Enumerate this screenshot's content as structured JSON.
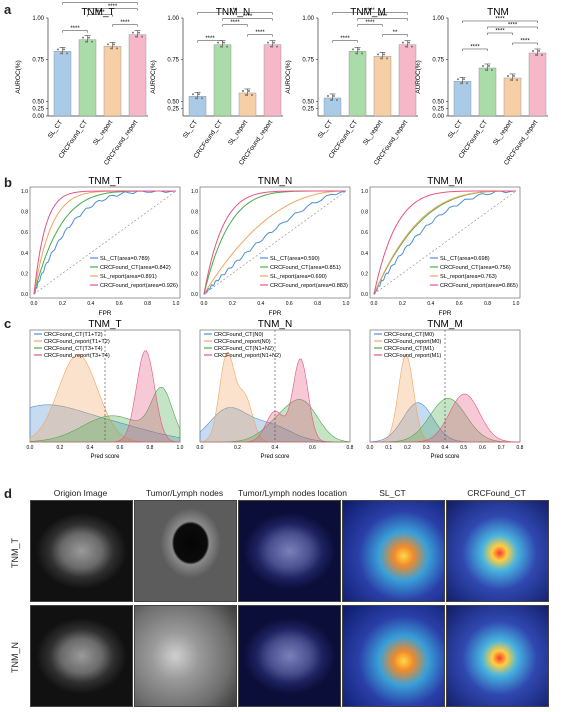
{
  "panels": {
    "a": "a",
    "b": "b",
    "c": "c",
    "d": "d"
  },
  "colors": {
    "sl_ct": "#4d8fd1",
    "crc_ct": "#4caa4c",
    "sl_report": "#f4a460",
    "crc_report": "#e75480",
    "bar_sl_ct": "#a9cbe8",
    "bar_crc_ct": "#a9dca9",
    "bar_sl_report": "#f7cfa7",
    "bar_crc_report": "#f6b8c8"
  },
  "bar_categories": [
    "SL_CT",
    "CRCFound_CT",
    "SL_report",
    "CRCFound_report"
  ],
  "bar_ylabel": "AUROC(%)",
  "roc_xlabel": "FPR",
  "density_xlabel": "Pred score",
  "section_d": {
    "columns": [
      "Origion Image",
      "Tumor/Lymph nodes",
      "Tumor/Lymph nodes location",
      "SL_CT",
      "CRCFound_CT"
    ],
    "rows": [
      "TNM_T",
      "TNM_N"
    ]
  },
  "chart_data": [
    {
      "type": "bar",
      "title": "TNM_T",
      "categories": [
        "SL_CT",
        "CRCFound_CT",
        "SL_report",
        "CRCFound_report"
      ],
      "values": [
        0.8,
        0.87,
        0.83,
        0.9
      ],
      "ylim": [
        0.0,
        1.0
      ],
      "yticks": [
        "0.00",
        "0.25",
        "0.50",
        "0.75",
        "1.00"
      ],
      "sig": [
        "****",
        "****",
        "****",
        "****",
        "**"
      ]
    },
    {
      "type": "bar",
      "title": "TNM_N",
      "categories": [
        "SL_CT",
        "CRCFound_CT",
        "SL_report",
        "CRCFound_report"
      ],
      "values": [
        0.53,
        0.84,
        0.55,
        0.84
      ],
      "ylim": [
        0.0,
        1.0
      ],
      "yticks": [
        "0.25",
        "0.50",
        "0.75",
        "1.00"
      ],
      "sig": [
        "****",
        "****",
        "****",
        "****",
        "**"
      ]
    },
    {
      "type": "bar",
      "title": "TNM_M",
      "categories": [
        "SL_CT",
        "CRCFound_CT",
        "SL_report",
        "CRCFound_report"
      ],
      "values": [
        0.52,
        0.8,
        0.77,
        0.84
      ],
      "ylim": [
        0.0,
        1.0
      ],
      "yticks": [
        "0.25",
        "0.50",
        "0.75",
        "1.00"
      ],
      "sig": [
        "****",
        "**",
        "****",
        "****",
        "****"
      ]
    },
    {
      "type": "bar",
      "title": "TNM",
      "categories": [
        "SL_CT",
        "CRCFound_CT",
        "SL_report",
        "CRCFound_report"
      ],
      "values": [
        0.62,
        0.7,
        0.64,
        0.79
      ],
      "ylim": [
        0.0,
        1.0
      ],
      "yticks": [
        "0.00",
        "0.25",
        "0.50",
        "0.75",
        "1.00"
      ],
      "sig": [
        "****",
        "****",
        "****",
        "****",
        "****"
      ]
    },
    {
      "type": "line",
      "title": "TNM_T",
      "xlabel": "FPR",
      "xlim": [
        0,
        1
      ],
      "ylim": [
        0,
        1
      ],
      "xticks": [
        "0.0",
        "0.2",
        "0.4",
        "0.6",
        "0.8",
        "1.0"
      ],
      "yticks": [
        "0.0",
        "0.2",
        "0.4",
        "0.6",
        "0.8",
        "1.0"
      ],
      "series": [
        {
          "name": "SL_CT(area=0.789)",
          "auc": 0.789
        },
        {
          "name": "CRCFound_CT(area=0.842)",
          "auc": 0.842
        },
        {
          "name": "SL_report(area=0.891)",
          "auc": 0.891
        },
        {
          "name": "CRCFound_report(area=0.926)",
          "auc": 0.926
        }
      ]
    },
    {
      "type": "line",
      "title": "TNM_N",
      "xlabel": "FPR",
      "xlim": [
        0,
        1
      ],
      "ylim": [
        0,
        1
      ],
      "xticks": [
        "0.0",
        "0.2",
        "0.4",
        "0.6",
        "0.8",
        "1.0"
      ],
      "yticks": [
        "0.0",
        "0.2",
        "0.4",
        "0.6",
        "0.8",
        "1.0"
      ],
      "series": [
        {
          "name": "SL_CT(area=0.590)",
          "auc": 0.59
        },
        {
          "name": "CRCFound_CT(area=0.851)",
          "auc": 0.851
        },
        {
          "name": "SL_report(area=0.690)",
          "auc": 0.69
        },
        {
          "name": "CRCFound_report(area=0.883)",
          "auc": 0.883
        }
      ]
    },
    {
      "type": "line",
      "title": "TNM_M",
      "xlabel": "FPR",
      "xlim": [
        0,
        1
      ],
      "ylim": [
        0,
        1
      ],
      "xticks": [
        "0.0",
        "0.2",
        "0.4",
        "0.6",
        "0.8",
        "1.0"
      ],
      "yticks": [
        "0.0",
        "0.2",
        "0.4",
        "0.6",
        "0.8",
        "1.0"
      ],
      "series": [
        {
          "name": "SL_CT(area=0.698)",
          "auc": 0.698
        },
        {
          "name": "CRCFound_CT(area=0.756)",
          "auc": 0.756
        },
        {
          "name": "SL_report(area=0.763)",
          "auc": 0.763
        },
        {
          "name": "CRCFound_report(area=0.865)",
          "auc": 0.865
        }
      ]
    },
    {
      "type": "area",
      "title": "TNM_T",
      "xlabel": "Pred score",
      "xlim": [
        0,
        1
      ],
      "xticks": [
        "0.0",
        "0.2",
        "0.4",
        "0.6",
        "0.8",
        "1.0"
      ],
      "threshold": 0.5,
      "series": [
        {
          "name": "CRCFound_CT(T1+T2)",
          "color": "#4d8fd1",
          "peaks": [
            [
              0.05,
              0.25,
              0.35
            ],
            [
              0.5,
              0.3,
              0.2
            ]
          ]
        },
        {
          "name": "CRCFound_report(T1+T2)",
          "color": "#f4a460",
          "peaks": [
            [
              0.32,
              0.13,
              1.0
            ]
          ]
        },
        {
          "name": "CRCFound_CT(T3+T4)",
          "color": "#4caa4c",
          "peaks": [
            [
              0.55,
              0.2,
              0.3
            ],
            [
              0.88,
              0.07,
              0.55
            ]
          ]
        },
        {
          "name": "CRCFound_report(T3+T4)",
          "color": "#e75480",
          "peaks": [
            [
              0.77,
              0.06,
              1.05
            ]
          ]
        }
      ]
    },
    {
      "type": "area",
      "title": "TNM_N",
      "xlabel": "Pred score",
      "xlim": [
        0,
        1
      ],
      "xticks": [
        "0.0",
        "0.2",
        "0.4",
        "0.6",
        "0.8"
      ],
      "threshold": 0.5,
      "series": [
        {
          "name": "CRCFound_CT(N0)",
          "color": "#4d8fd1",
          "peaks": [
            [
              0.18,
              0.12,
              0.35
            ],
            [
              0.45,
              0.15,
              0.2
            ]
          ]
        },
        {
          "name": "CRCFound_report(N0)",
          "color": "#f4a460",
          "peaks": [
            [
              0.18,
              0.05,
              1.0
            ],
            [
              0.3,
              0.05,
              0.5
            ]
          ]
        },
        {
          "name": "CRCFound_CT(N1+N2)",
          "color": "#4caa4c",
          "peaks": [
            [
              0.55,
              0.12,
              0.25
            ],
            [
              0.7,
              0.1,
              0.35
            ]
          ]
        },
        {
          "name": "CRCFound_report(N1+N2)",
          "color": "#e75480",
          "peaks": [
            [
              0.5,
              0.06,
              0.35
            ],
            [
              0.67,
              0.05,
              0.95
            ]
          ]
        }
      ]
    },
    {
      "type": "area",
      "title": "TNM_M",
      "xlabel": "Pred score",
      "xlim": [
        0,
        1
      ],
      "xticks": [
        "0.0",
        "0.1",
        "0.2",
        "0.3",
        "0.4",
        "0.5",
        "0.6",
        "0.7",
        "0.8"
      ],
      "threshold": 0.5,
      "series": [
        {
          "name": "CRCFound_CT(M0)",
          "color": "#4d8fd1",
          "peaks": [
            [
              0.32,
              0.1,
              0.45
            ]
          ]
        },
        {
          "name": "CRCFound_report(M0)",
          "color": "#f4a460",
          "peaks": [
            [
              0.24,
              0.05,
              1.0
            ]
          ]
        },
        {
          "name": "CRCFound_CT(M1)",
          "color": "#4caa4c",
          "peaks": [
            [
              0.52,
              0.12,
              0.5
            ]
          ]
        },
        {
          "name": "CRCFound_report(M1)",
          "color": "#e75480",
          "peaks": [
            [
              0.63,
              0.1,
              0.55
            ]
          ]
        }
      ]
    }
  ]
}
